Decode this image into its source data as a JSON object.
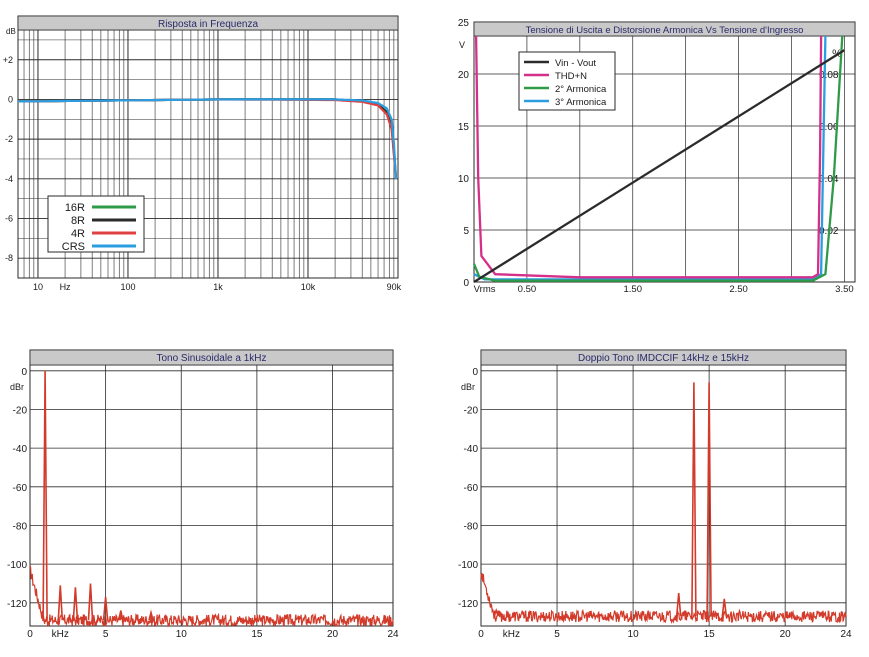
{
  "colors": {
    "title_bg": "#c9c9c9",
    "title_text": "#2a2a6a",
    "grid": "#2a2a2a",
    "axis_text": "#1a1a1a",
    "spectrum": "#d23a2a",
    "green": "#2f9a48",
    "black": "#2b2b2b",
    "red": "#e04040",
    "blue": "#2a9ee0",
    "magenta": "#d4308a"
  },
  "chart_data": [
    {
      "id": "freq",
      "type": "line",
      "title": "Risposta in Frequenza",
      "ylabel": "dB",
      "xlabel": "Hz",
      "x_scale": "log",
      "xlim": [
        6,
        100000
      ],
      "ylim": [
        -9,
        3.5
      ],
      "yticks": [
        {
          "v": 2,
          "label": "+2"
        },
        {
          "v": 0,
          "label": "0"
        },
        {
          "v": -2,
          "label": "-2"
        },
        {
          "v": -4,
          "label": "-4"
        },
        {
          "v": -6,
          "label": "-6"
        },
        {
          "v": -8,
          "label": "-8"
        }
      ],
      "xtick_labels": [
        {
          "v": 10,
          "label": "10"
        },
        {
          "v": 20,
          "label": "Hz"
        },
        {
          "v": 100,
          "label": "100"
        },
        {
          "v": 1000,
          "label": "1k"
        },
        {
          "v": 10000,
          "label": "10k"
        },
        {
          "v": 90000,
          "label": "90k"
        }
      ],
      "legend": [
        {
          "name": "16R",
          "color": "#2f9a48"
        },
        {
          "name": "8R",
          "color": "#2b2b2b"
        },
        {
          "name": "4R",
          "color": "#e04040"
        },
        {
          "name": "CRS",
          "color": "#2a9ee0"
        }
      ],
      "legend_position": "bottom-left",
      "series": [
        {
          "name": "16R",
          "color": "#2f9a48",
          "points": [
            [
              6,
              -0.1
            ],
            [
              1000,
              0
            ],
            [
              20000,
              0
            ],
            [
              40000,
              -0.1
            ],
            [
              60000,
              -0.25
            ],
            [
              75000,
              -0.6
            ],
            [
              85000,
              -1.3
            ],
            [
              90000,
              -2.5
            ],
            [
              95000,
              -4
            ]
          ]
        },
        {
          "name": "8R",
          "color": "#2b2b2b",
          "points": [
            [
              6,
              -0.1
            ],
            [
              1000,
              0
            ],
            [
              20000,
              0
            ],
            [
              40000,
              -0.1
            ],
            [
              60000,
              -0.25
            ],
            [
              75000,
              -0.65
            ],
            [
              85000,
              -1.4
            ],
            [
              90000,
              -2.6
            ],
            [
              95000,
              -4
            ]
          ]
        },
        {
          "name": "4R",
          "color": "#e04040",
          "points": [
            [
              6,
              -0.1
            ],
            [
              1000,
              0
            ],
            [
              20000,
              -0.03
            ],
            [
              40000,
              -0.12
            ],
            [
              60000,
              -0.3
            ],
            [
              75000,
              -0.75
            ],
            [
              85000,
              -1.5
            ],
            [
              90000,
              -2.8
            ],
            [
              95000,
              -4
            ]
          ]
        },
        {
          "name": "CRS",
          "color": "#2a9ee0",
          "points": [
            [
              6,
              -0.1
            ],
            [
              1000,
              0
            ],
            [
              20000,
              0
            ],
            [
              40000,
              -0.05
            ],
            [
              60000,
              -0.18
            ],
            [
              75000,
              -0.45
            ],
            [
              85000,
              -1.0
            ],
            [
              90000,
              -2.2
            ],
            [
              95000,
              -4
            ]
          ]
        }
      ]
    },
    {
      "id": "thd",
      "type": "line",
      "title": "Tensione di Uscita e Distorsione Armonica Vs Tensione d'Ingresso",
      "xlabel": "Vrms",
      "ylabel_left": "V",
      "ylabel_right": "%",
      "xlim": [
        0,
        3.6
      ],
      "ylim_left": [
        0,
        25
      ],
      "ylim_right": [
        0,
        0.1
      ],
      "yticks_left": [
        0,
        5,
        10,
        15,
        20,
        25
      ],
      "yticks_right": [
        {
          "v": 0.02,
          "label": "0.02"
        },
        {
          "v": 0.04,
          "label": "0.04"
        },
        {
          "v": 0.06,
          "label": "0.06"
        },
        {
          "v": 0.08,
          "label": "0.08"
        }
      ],
      "xtick_labels": [
        {
          "v": 0.1,
          "label": "Vrms"
        },
        {
          "v": 0.5,
          "label": "0.50"
        },
        {
          "v": 1.5,
          "label": "1.50"
        },
        {
          "v": 2.5,
          "label": "2.50"
        },
        {
          "v": 3.5,
          "label": "3.50"
        }
      ],
      "xgrid": [
        0.5,
        1.0,
        1.5,
        2.0,
        2.5,
        3.0,
        3.5
      ],
      "legend": [
        {
          "name": "Vin - Vout",
          "color": "#2b2b2b"
        },
        {
          "name": "THD+N",
          "color": "#d4308a"
        },
        {
          "name": "2° Armonica",
          "color": "#2f9a48"
        },
        {
          "name": "3° Armonica",
          "color": "#2a9ee0"
        }
      ],
      "legend_position": "top-left",
      "series": [
        {
          "name": "3° Armonica",
          "axis": "right",
          "color": "#2a9ee0",
          "points": [
            [
              0,
              0.003
            ],
            [
              0.1,
              0.001
            ],
            [
              0.5,
              0.001
            ],
            [
              3.2,
              0.001
            ],
            [
              3.28,
              0.003
            ],
            [
              3.3,
              0.05
            ],
            [
              3.32,
              0.1
            ]
          ]
        },
        {
          "name": "2° Armonica",
          "axis": "right",
          "color": "#2f9a48",
          "points": [
            [
              0,
              0.007
            ],
            [
              0.05,
              0.002
            ],
            [
              0.2,
              0.0005
            ],
            [
              3.2,
              0.0005
            ],
            [
              3.32,
              0.003
            ],
            [
              3.4,
              0.04
            ],
            [
              3.48,
              0.1
            ]
          ]
        },
        {
          "name": "THD+N",
          "axis": "right",
          "color": "#d4308a",
          "points": [
            [
              0.02,
              0.1
            ],
            [
              0.04,
              0.04
            ],
            [
              0.07,
              0.01
            ],
            [
              0.2,
              0.003
            ],
            [
              1.0,
              0.0018
            ],
            [
              3.2,
              0.0018
            ],
            [
              3.25,
              0.003
            ],
            [
              3.27,
              0.05
            ],
            [
              3.28,
              0.1
            ]
          ]
        },
        {
          "name": "Vin - Vout",
          "axis": "left",
          "color": "#2b2b2b",
          "points": [
            [
              0,
              0
            ],
            [
              3.5,
              22.3
            ]
          ]
        }
      ]
    },
    {
      "id": "tono",
      "type": "line",
      "title": "Tono Sinusoidale a 1kHz",
      "ylabel": "dBr",
      "xlabel": "kHz",
      "xlim": [
        0,
        24
      ],
      "ylim": [
        -132,
        3
      ],
      "yticks": [
        0,
        -20,
        -40,
        -60,
        -80,
        -100,
        -120
      ],
      "xtick_labels": [
        {
          "v": 0,
          "label": "0"
        },
        {
          "v": 2,
          "label": "kHz"
        },
        {
          "v": 5,
          "label": "5"
        },
        {
          "v": 10,
          "label": "10"
        },
        {
          "v": 15,
          "label": "15"
        },
        {
          "v": 20,
          "label": "20"
        },
        {
          "v": 24,
          "label": "24"
        }
      ],
      "xgrid": [
        5,
        10,
        15,
        20
      ],
      "noise_floor": -129,
      "noise_start": -103,
      "peaks": [
        {
          "f": 1,
          "level": 0
        },
        {
          "f": 2,
          "level": -111
        },
        {
          "f": 3,
          "level": -112
        },
        {
          "f": 4,
          "level": -110
        },
        {
          "f": 5,
          "level": -117
        },
        {
          "f": 6,
          "level": -124
        },
        {
          "f": 8,
          "level": -125
        }
      ]
    },
    {
      "id": "imd",
      "type": "line",
      "title": "Doppio Tono IMDCCIF 14kHz e 15kHz",
      "ylabel": "dBr",
      "xlabel": "kHz",
      "xlim": [
        0,
        24
      ],
      "ylim": [
        -132,
        3
      ],
      "yticks": [
        0,
        -20,
        -40,
        -60,
        -80,
        -100,
        -120
      ],
      "xtick_labels": [
        {
          "v": 0,
          "label": "0"
        },
        {
          "v": 2,
          "label": "kHz"
        },
        {
          "v": 5,
          "label": "5"
        },
        {
          "v": 10,
          "label": "10"
        },
        {
          "v": 15,
          "label": "15"
        },
        {
          "v": 20,
          "label": "20"
        },
        {
          "v": 24,
          "label": "24"
        }
      ],
      "xgrid": [
        5,
        10,
        15,
        20
      ],
      "noise_floor": -127,
      "noise_start": -104,
      "peaks": [
        {
          "f": 1,
          "level": -124
        },
        {
          "f": 13,
          "level": -115
        },
        {
          "f": 14,
          "level": -6
        },
        {
          "f": 15,
          "level": -6
        },
        {
          "f": 16,
          "level": -118
        }
      ]
    }
  ]
}
